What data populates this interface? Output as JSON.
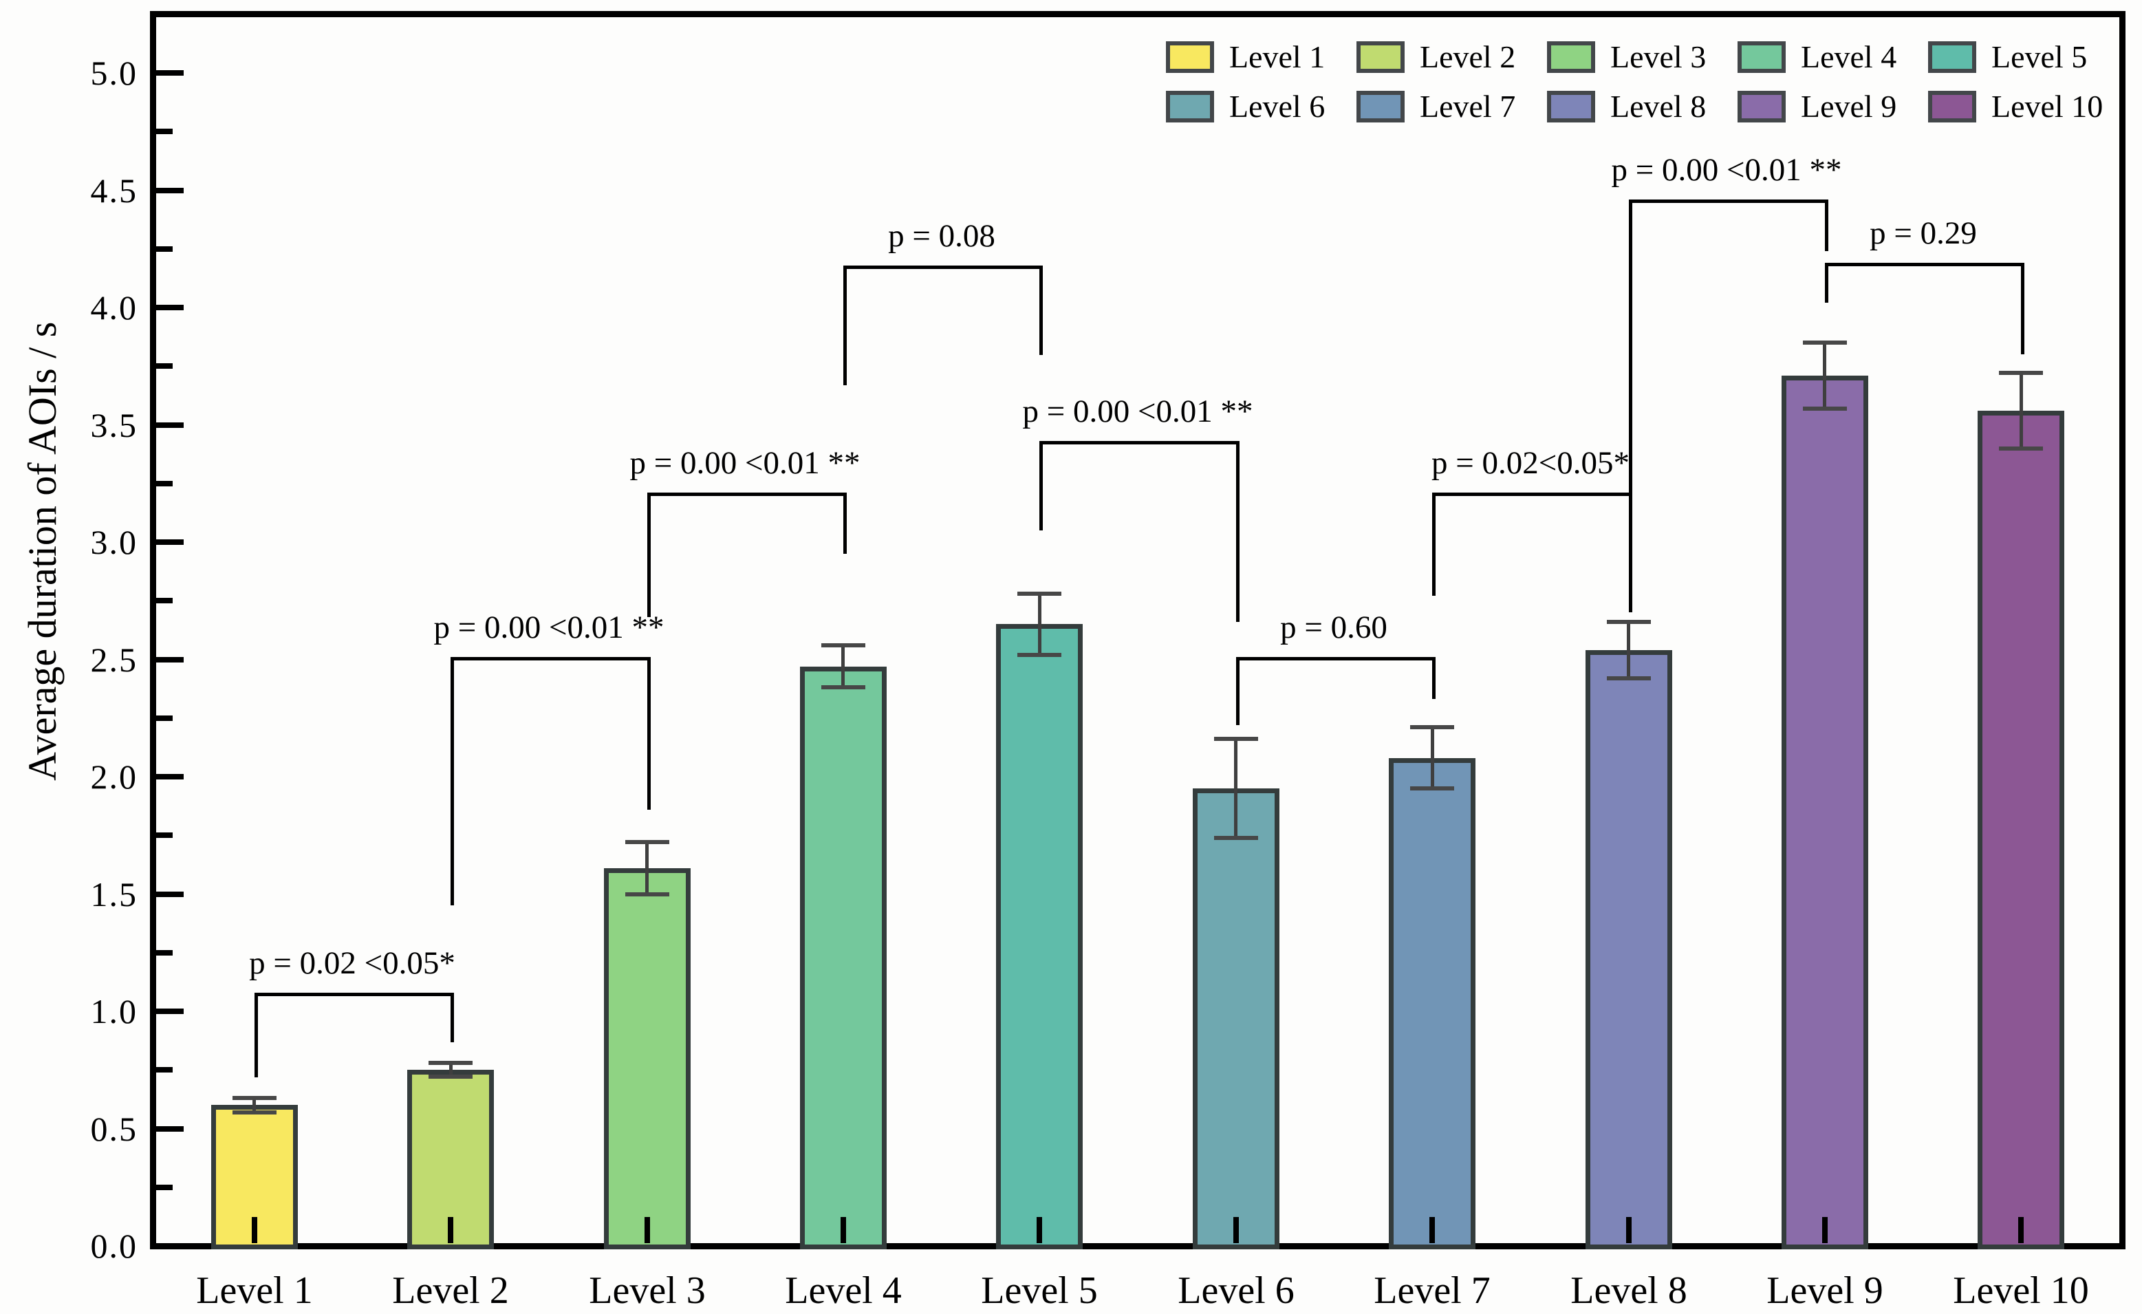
{
  "chart_data": {
    "type": "bar",
    "title": "",
    "xlabel": "",
    "ylabel": "Average duration of AOIs / s",
    "ylim": [
      0.0,
      5.26
    ],
    "grid": false,
    "legend_position": "top-right",
    "yticks": [
      {
        "value": 0.0,
        "label": "0.0"
      },
      {
        "value": 0.5,
        "label": "0.5"
      },
      {
        "value": 1.0,
        "label": "1.0"
      },
      {
        "value": 1.5,
        "label": "1.5"
      },
      {
        "value": 2.0,
        "label": "2.0"
      },
      {
        "value": 2.5,
        "label": "2.5"
      },
      {
        "value": 3.0,
        "label": "3.0"
      },
      {
        "value": 3.5,
        "label": "3.5"
      },
      {
        "value": 4.0,
        "label": "4.0"
      },
      {
        "value": 4.5,
        "label": "4.5"
      },
      {
        "value": 5.0,
        "label": "5.0"
      }
    ],
    "minor_tick_step": 0.25,
    "categories": [
      "Level 1",
      "Level 2",
      "Level 3",
      "Level 4",
      "Level 5",
      "Level 6",
      "Level 7",
      "Level 8",
      "Level 9",
      "Level 10"
    ],
    "values": [
      0.6,
      0.75,
      1.61,
      2.47,
      2.65,
      1.95,
      2.08,
      2.54,
      3.71,
      3.56
    ],
    "errors": [
      0.03,
      0.03,
      0.11,
      0.09,
      0.13,
      0.21,
      0.13,
      0.12,
      0.14,
      0.16
    ],
    "bar_colors": [
      "#f8e860",
      "#c0db70",
      "#8fd383",
      "#74c89c",
      "#5fbcaa",
      "#6fa8b0",
      "#7195b6",
      "#7e85b8",
      "#8a6ca9",
      "#8c5794"
    ],
    "bar_edge_color": "#343c3c",
    "error_bar_color": "#3f3f3f",
    "legend_labels": [
      "Level 1",
      "Level 2",
      "Level 3",
      "Level 4",
      "Level 5",
      "Level 6",
      "Level 7",
      "Level 8",
      "Level 9",
      "Level 10"
    ],
    "significance_brackets": [
      {
        "from": "Level 1",
        "to": "Level 2",
        "label": "p = 0.02 <0.05*",
        "top": 1.08,
        "left_end": 0.72,
        "right_end": 0.87
      },
      {
        "from": "Level 2",
        "to": "Level 3",
        "label": "p = 0.00 <0.01 **",
        "top": 2.51,
        "left_end": 1.45,
        "right_end": 1.86
      },
      {
        "from": "Level 3",
        "to": "Level 4",
        "label": "p = 0.00 <0.01 **",
        "top": 3.21,
        "left_end": 2.68,
        "right_end": 2.95
      },
      {
        "from": "Level 4",
        "to": "Level 5",
        "label": "p = 0.08",
        "top": 4.18,
        "left_end": 3.67,
        "right_end": 3.8
      },
      {
        "from": "Level 5",
        "to": "Level 6",
        "label": "p = 0.00 <0.01 **",
        "top": 3.43,
        "left_end": 3.05,
        "right_end": 2.66
      },
      {
        "from": "Level 6",
        "to": "Level 7",
        "label": "p = 0.60",
        "top": 2.51,
        "left_end": 2.22,
        "right_end": 2.33
      },
      {
        "from": "Level 7",
        "to": "Level 8",
        "label": "p = 0.02<0.05*",
        "top": 3.21,
        "left_end": 2.77,
        "right_end": 2.97
      },
      {
        "from": "Level 8",
        "to": "Level 9",
        "label": "p = 0.00 <0.01 **",
        "top": 4.46,
        "left_end": 2.7,
        "right_end": 4.24
      },
      {
        "from": "Level 9",
        "to": "Level 10",
        "label": "p = 0.29",
        "top": 4.19,
        "left_end": 4.02,
        "right_end": 3.8
      }
    ]
  }
}
